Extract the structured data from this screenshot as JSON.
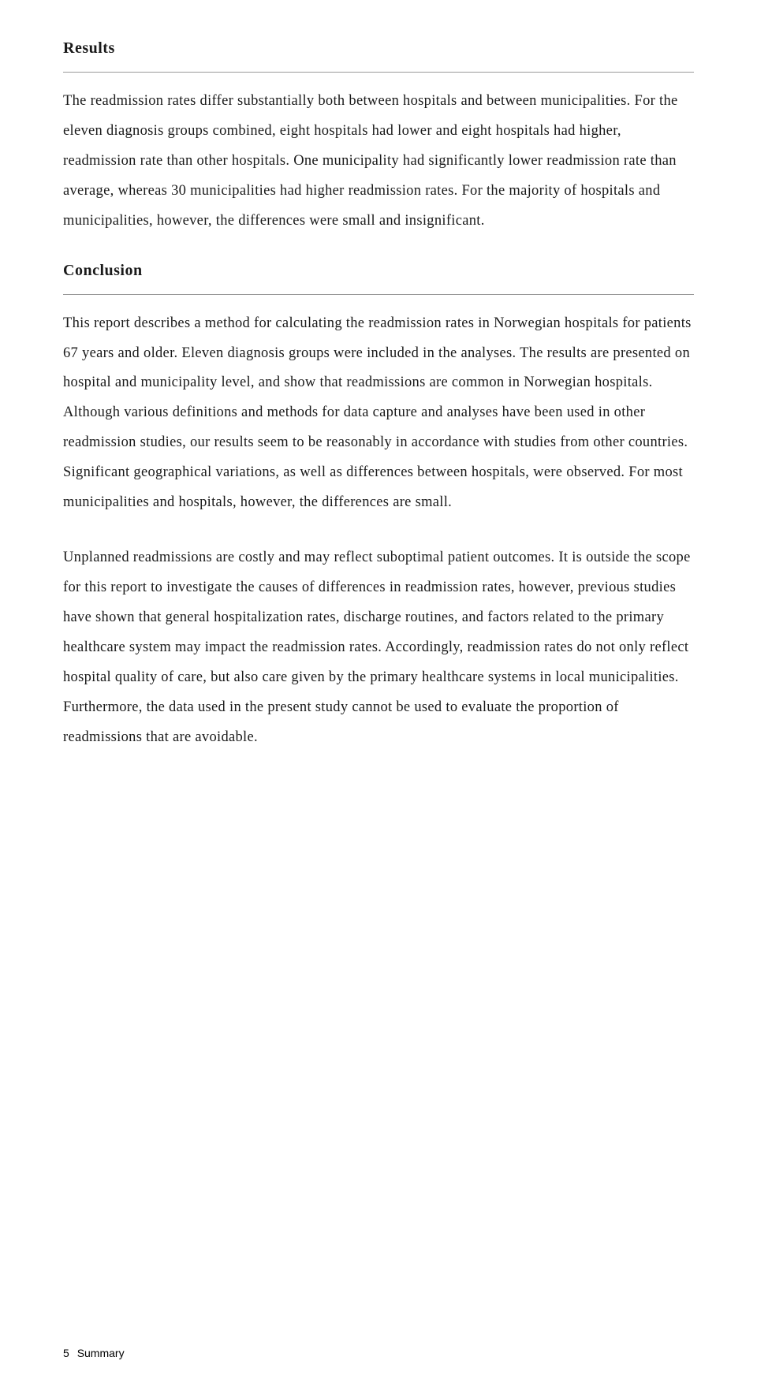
{
  "sections": {
    "results": {
      "heading": "Results",
      "paragraph": "The readmission rates differ substantially both between hospitals and between municipalities. For the eleven diagnosis groups combined, eight hospitals had lower and eight hospitals had higher, readmission rate than other hospitals. One municipality had significantly lower readmission rate than average, whereas 30 municipalities had higher readmission rates. For the majority of hospitals and municipalities, however, the differences were small and insignificant."
    },
    "conclusion": {
      "heading": "Conclusion",
      "paragraph1": "This report describes a method for calculating the readmission rates in Norwegian hospitals for patients 67 years and older. Eleven diagnosis groups were included in the analyses. The results are presented on hospital and municipality level, and show that readmissions are common in Norwegian hospitals. Although various definitions and methods for data capture and analyses have been used in other readmission studies, our results seem to be reasonably in accordance with studies from other countries. Significant geographical variations, as well as differences between hospitals, were observed. For most municipalities and hospitals, however, the differences are small.",
      "paragraph2": "Unplanned readmissions are costly and may reflect suboptimal patient outcomes. It is outside the scope for this report to investigate the causes of differences in readmission rates, however, previous studies have shown that general hospitalization rates, discharge routines, and factors related to the primary healthcare system may impact the readmission rates. Accordingly, readmission rates do not only reflect hospital quality of care, but also care given by the primary healthcare systems in local municipalities. Furthermore, the data used in the present study cannot be used to evaluate the proportion of readmissions that are avoidable."
    }
  },
  "footer": {
    "page_number": "5",
    "label": "Summary"
  }
}
